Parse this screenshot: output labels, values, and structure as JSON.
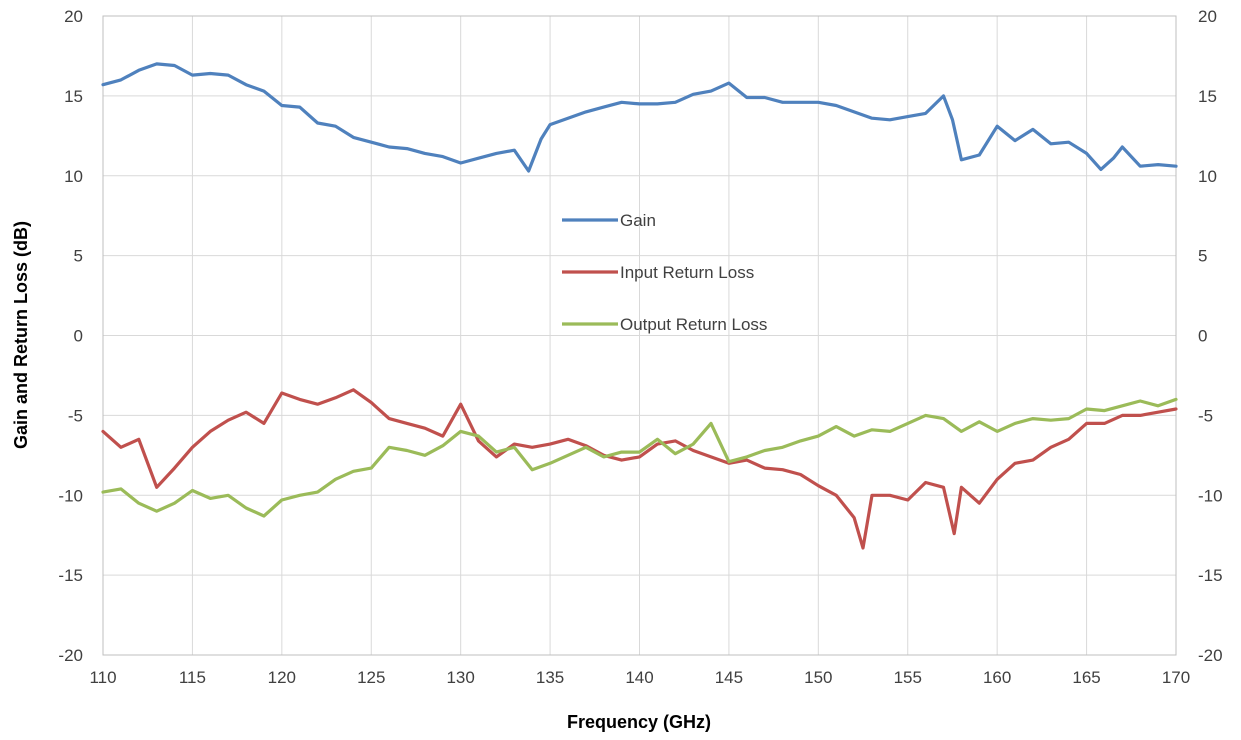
{
  "chart_data": {
    "type": "line",
    "title": "",
    "xlabel": "Frequency (GHz)",
    "ylabel": "Gain and Return Loss (dB)",
    "xlim": [
      110,
      170
    ],
    "ylim": [
      -20,
      20
    ],
    "x_ticks": [
      110,
      115,
      120,
      125,
      130,
      135,
      140,
      145,
      150,
      155,
      160,
      165,
      170
    ],
    "y_ticks": [
      -20,
      -15,
      -10,
      -5,
      0,
      5,
      10,
      15,
      20
    ],
    "y2_ticks": [
      -20,
      -15,
      -10,
      -5,
      0,
      5,
      10,
      15,
      20
    ],
    "grid": true,
    "legend_position": "center",
    "series": [
      {
        "name": "Gain",
        "color": "#4f81bd",
        "points": [
          [
            110,
            15.7
          ],
          [
            111,
            16.0
          ],
          [
            112,
            16.6
          ],
          [
            113,
            17.0
          ],
          [
            114,
            16.9
          ],
          [
            115,
            16.3
          ],
          [
            116,
            16.4
          ],
          [
            117,
            16.3
          ],
          [
            118,
            15.7
          ],
          [
            119,
            15.3
          ],
          [
            120,
            14.4
          ],
          [
            121,
            14.3
          ],
          [
            122,
            13.3
          ],
          [
            123,
            13.1
          ],
          [
            124,
            12.4
          ],
          [
            125,
            12.1
          ],
          [
            126,
            11.8
          ],
          [
            127,
            11.7
          ],
          [
            128,
            11.4
          ],
          [
            129,
            11.2
          ],
          [
            130,
            10.8
          ],
          [
            131,
            11.1
          ],
          [
            132,
            11.4
          ],
          [
            133,
            11.6
          ],
          [
            133.8,
            10.3
          ],
          [
            134.5,
            12.3
          ],
          [
            135,
            13.2
          ],
          [
            136,
            13.6
          ],
          [
            137,
            14.0
          ],
          [
            138,
            14.3
          ],
          [
            139,
            14.6
          ],
          [
            140,
            14.5
          ],
          [
            141,
            14.5
          ],
          [
            142,
            14.6
          ],
          [
            143,
            15.1
          ],
          [
            144,
            15.3
          ],
          [
            145,
            15.8
          ],
          [
            146,
            14.9
          ],
          [
            147,
            14.9
          ],
          [
            148,
            14.6
          ],
          [
            149,
            14.6
          ],
          [
            150,
            14.6
          ],
          [
            151,
            14.4
          ],
          [
            152,
            14.0
          ],
          [
            153,
            13.6
          ],
          [
            154,
            13.5
          ],
          [
            155,
            13.7
          ],
          [
            156,
            13.9
          ],
          [
            157,
            15.0
          ],
          [
            157.5,
            13.5
          ],
          [
            158,
            11.0
          ],
          [
            159,
            11.3
          ],
          [
            160,
            13.1
          ],
          [
            161,
            12.2
          ],
          [
            162,
            12.9
          ],
          [
            163,
            12.0
          ],
          [
            164,
            12.1
          ],
          [
            165,
            11.4
          ],
          [
            165.8,
            10.4
          ],
          [
            166.5,
            11.1
          ],
          [
            167,
            11.8
          ],
          [
            168,
            10.6
          ],
          [
            169,
            10.7
          ],
          [
            170,
            10.6
          ]
        ]
      },
      {
        "name": "Input Return Loss",
        "color": "#c0504d",
        "points": [
          [
            110,
            -6.0
          ],
          [
            111,
            -7.0
          ],
          [
            112,
            -6.5
          ],
          [
            113,
            -9.5
          ],
          [
            114,
            -8.3
          ],
          [
            115,
            -7.0
          ],
          [
            116,
            -6.0
          ],
          [
            117,
            -5.3
          ],
          [
            118,
            -4.8
          ],
          [
            119,
            -5.5
          ],
          [
            120,
            -3.6
          ],
          [
            121,
            -4.0
          ],
          [
            122,
            -4.3
          ],
          [
            123,
            -3.9
          ],
          [
            124,
            -3.4
          ],
          [
            125,
            -4.2
          ],
          [
            126,
            -5.2
          ],
          [
            127,
            -5.5
          ],
          [
            128,
            -5.8
          ],
          [
            129,
            -6.3
          ],
          [
            130,
            -4.3
          ],
          [
            131,
            -6.6
          ],
          [
            132,
            -7.6
          ],
          [
            133,
            -6.8
          ],
          [
            134,
            -7.0
          ],
          [
            135,
            -6.8
          ],
          [
            136,
            -6.5
          ],
          [
            137,
            -6.9
          ],
          [
            138,
            -7.5
          ],
          [
            139,
            -7.8
          ],
          [
            140,
            -7.6
          ],
          [
            141,
            -6.8
          ],
          [
            142,
            -6.6
          ],
          [
            143,
            -7.2
          ],
          [
            144,
            -7.6
          ],
          [
            145,
            -8.0
          ],
          [
            146,
            -7.8
          ],
          [
            147,
            -8.3
          ],
          [
            148,
            -8.4
          ],
          [
            149,
            -8.7
          ],
          [
            150,
            -9.4
          ],
          [
            151,
            -10.0
          ],
          [
            152,
            -11.4
          ],
          [
            152.5,
            -13.3
          ],
          [
            153,
            -10.0
          ],
          [
            154,
            -10.0
          ],
          [
            155,
            -10.3
          ],
          [
            156,
            -9.2
          ],
          [
            157,
            -9.5
          ],
          [
            157.6,
            -12.4
          ],
          [
            158,
            -9.5
          ],
          [
            159,
            -10.5
          ],
          [
            160,
            -9.0
          ],
          [
            161,
            -8.0
          ],
          [
            162,
            -7.8
          ],
          [
            163,
            -7.0
          ],
          [
            164,
            -6.5
          ],
          [
            165,
            -5.5
          ],
          [
            166,
            -5.5
          ],
          [
            167,
            -5.0
          ],
          [
            168,
            -5.0
          ],
          [
            169,
            -4.8
          ],
          [
            170,
            -4.6
          ]
        ]
      },
      {
        "name": "Output Return Loss",
        "color": "#9bbb59",
        "points": [
          [
            110,
            -9.8
          ],
          [
            111,
            -9.6
          ],
          [
            112,
            -10.5
          ],
          [
            113,
            -11.0
          ],
          [
            114,
            -10.5
          ],
          [
            115,
            -9.7
          ],
          [
            116,
            -10.2
          ],
          [
            117,
            -10.0
          ],
          [
            118,
            -10.8
          ],
          [
            119,
            -11.3
          ],
          [
            120,
            -10.3
          ],
          [
            121,
            -10.0
          ],
          [
            122,
            -9.8
          ],
          [
            123,
            -9.0
          ],
          [
            124,
            -8.5
          ],
          [
            125,
            -8.3
          ],
          [
            126,
            -7.0
          ],
          [
            127,
            -7.2
          ],
          [
            128,
            -7.5
          ],
          [
            129,
            -6.9
          ],
          [
            130,
            -6.0
          ],
          [
            131,
            -6.3
          ],
          [
            132,
            -7.3
          ],
          [
            133,
            -7.0
          ],
          [
            134,
            -8.4
          ],
          [
            135,
            -8.0
          ],
          [
            136,
            -7.5
          ],
          [
            137,
            -7.0
          ],
          [
            138,
            -7.6
          ],
          [
            139,
            -7.3
          ],
          [
            140,
            -7.3
          ],
          [
            141,
            -6.5
          ],
          [
            142,
            -7.4
          ],
          [
            143,
            -6.8
          ],
          [
            144,
            -5.5
          ],
          [
            145,
            -7.9
          ],
          [
            146,
            -7.6
          ],
          [
            147,
            -7.2
          ],
          [
            148,
            -7.0
          ],
          [
            149,
            -6.6
          ],
          [
            150,
            -6.3
          ],
          [
            151,
            -5.7
          ],
          [
            152,
            -6.3
          ],
          [
            153,
            -5.9
          ],
          [
            154,
            -6.0
          ],
          [
            155,
            -5.5
          ],
          [
            156,
            -5.0
          ],
          [
            157,
            -5.2
          ],
          [
            158,
            -6.0
          ],
          [
            159,
            -5.4
          ],
          [
            160,
            -6.0
          ],
          [
            161,
            -5.5
          ],
          [
            162,
            -5.2
          ],
          [
            163,
            -5.3
          ],
          [
            164,
            -5.2
          ],
          [
            165,
            -4.6
          ],
          [
            166,
            -4.7
          ],
          [
            167,
            -4.4
          ],
          [
            168,
            -4.1
          ],
          [
            169,
            -4.4
          ],
          [
            170,
            -4.0
          ]
        ]
      }
    ]
  }
}
